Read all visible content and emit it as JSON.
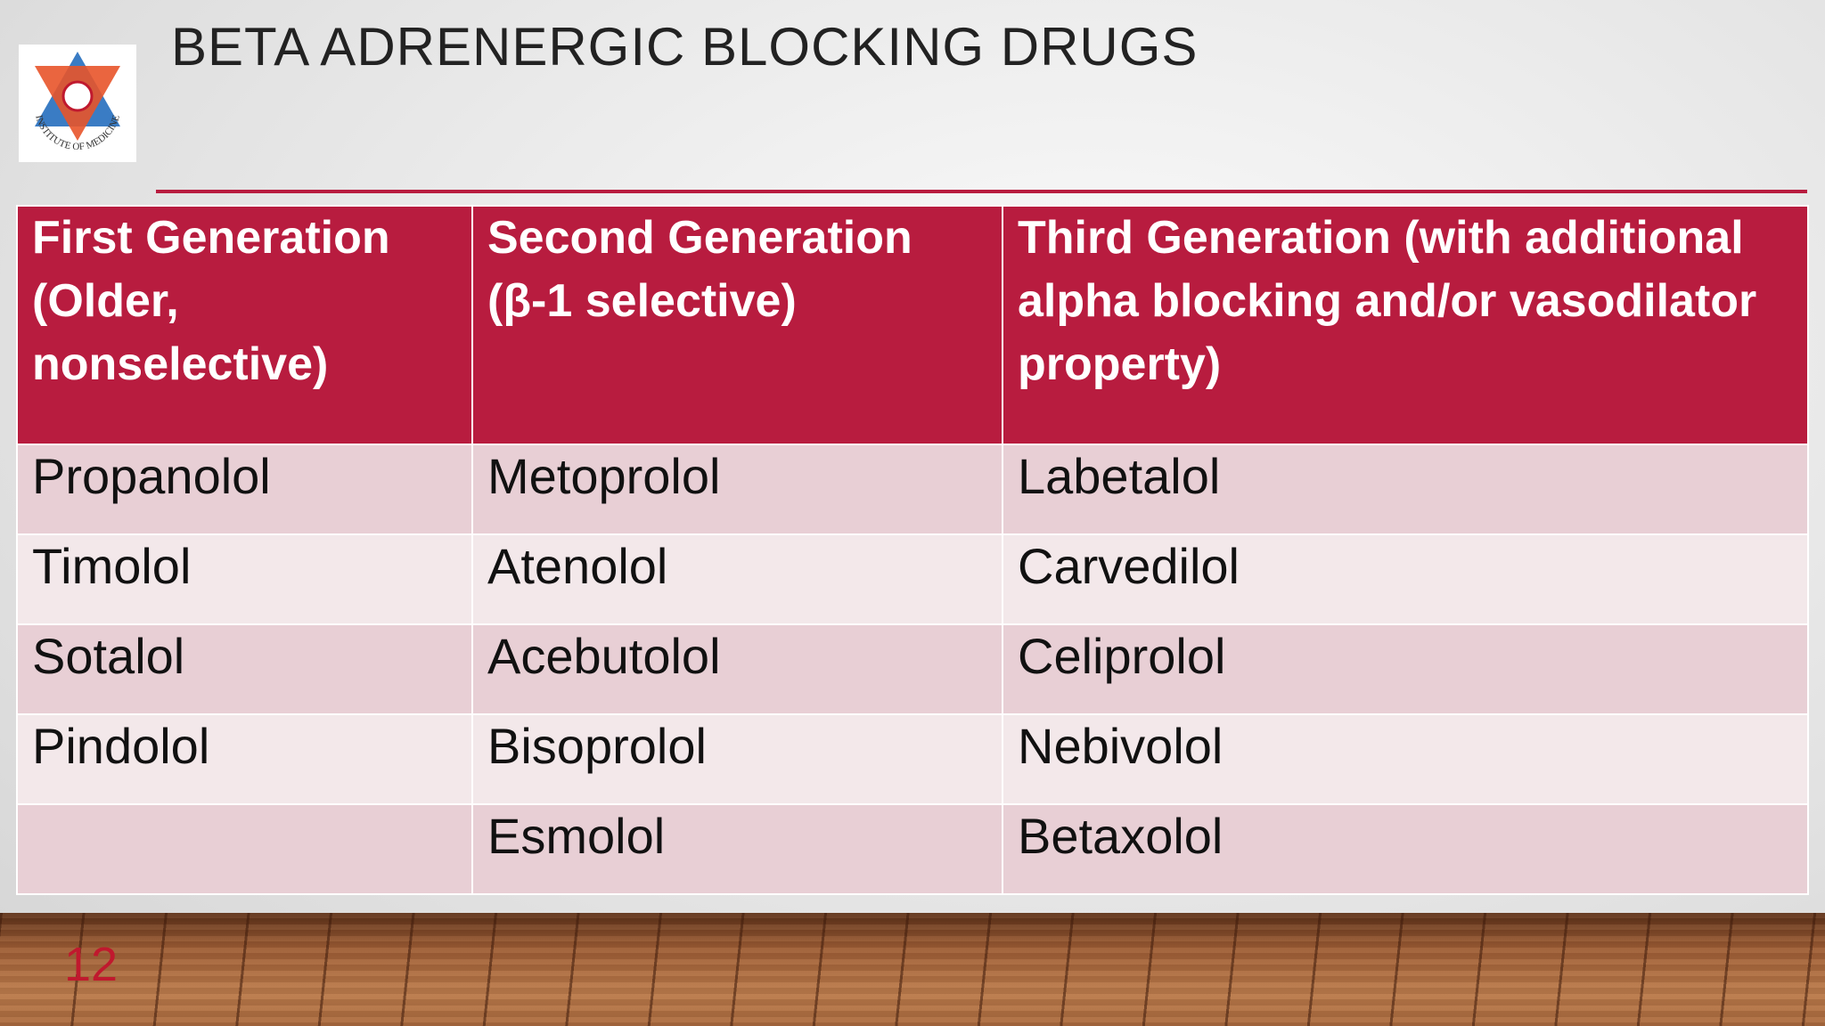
{
  "header": {
    "title": "BETA ADRENERGIC BLOCKING DRUGS",
    "logo_text": "INSTITUTE OF MEDICINE"
  },
  "table": {
    "columns": [
      "First Generation (Older, nonselective)",
      "Second Generation (β-1 selective)",
      "Third Generation (with additional alpha blocking and/or vasodilator property)"
    ],
    "rows": [
      [
        "Propanolol",
        "Metoprolol",
        "Labetalol"
      ],
      [
        "Timolol",
        "Atenolol",
        "Carvedilol"
      ],
      [
        "Sotalol",
        "Acebutolol",
        "Celiprolol"
      ],
      [
        "Pindolol",
        "Bisoprolol",
        "Nebivolol"
      ],
      [
        null,
        "Esmolol",
        "Betaxolol"
      ]
    ]
  },
  "footer": {
    "slide_number": "12"
  }
}
